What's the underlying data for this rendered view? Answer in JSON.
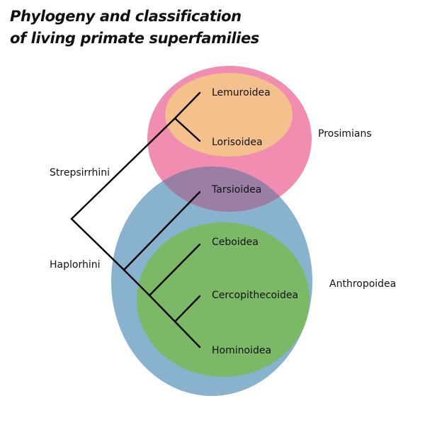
{
  "title": {
    "line1": "Phylogeny and classification",
    "line2": "of living primate superfamilies"
  },
  "taxa": {
    "lemuroidea": "Lemuroidea",
    "lorisoidea": "Lorisoidea",
    "tarsioidea": "Tarsioidea",
    "ceboidea": "Ceboidea",
    "cercopithecoidea": "Cercopithecoidea",
    "hominoidea": "Hominoidea"
  },
  "clades": {
    "strepsirrhini": "Strepsirrhini",
    "haplorhini": "Haplorhini"
  },
  "groups": {
    "prosimians": "Prosimians",
    "anthropoidea": "Anthropoidea"
  },
  "colors": {
    "prosimians": "#f08db0",
    "strepsirrhini_inner": "#f4c08c",
    "anthropoidea": "#88b2cd",
    "overlap": "#9b7ea3",
    "catarrhini_inner": "#7bb967",
    "tree": "#000000"
  }
}
